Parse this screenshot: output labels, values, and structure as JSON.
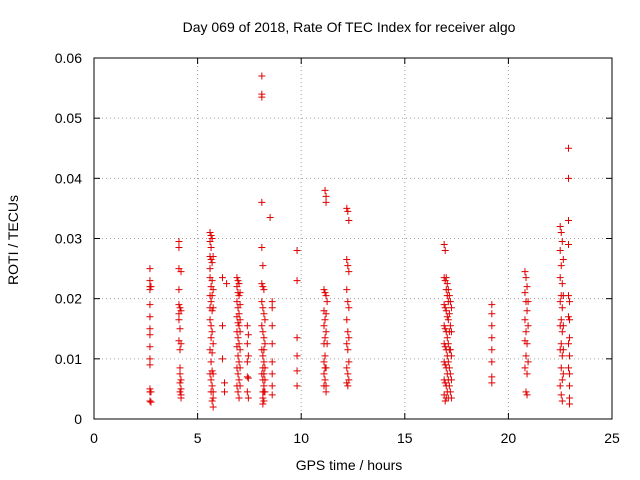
{
  "chart_data": {
    "type": "scatter",
    "title": "Day 069 of 2018, Rate Of TEC Index for receiver algo",
    "xlabel": "GPS time / hours",
    "ylabel": "ROTI / TECUs",
    "xlim": [
      0,
      25
    ],
    "ylim": [
      0,
      0.06
    ],
    "xticks": [
      0,
      5,
      10,
      15,
      20,
      25
    ],
    "xtick_labels": [
      "0",
      "5",
      "10",
      "15",
      "20",
      "25"
    ],
    "yticks": [
      0,
      0.01,
      0.02,
      0.03,
      0.04,
      0.05,
      0.06
    ],
    "ytick_labels": [
      "0",
      "0.01",
      "0.02",
      "0.03",
      "0.04",
      "0.05",
      "0.06"
    ],
    "grid": true,
    "marker": "+",
    "color": "#e00000",
    "series": [
      {
        "x": [
          2.7,
          2.7,
          2.7,
          2.7,
          2.7,
          2.7,
          2.7,
          2.7,
          2.7,
          2.7,
          2.7,
          2.7,
          2.7,
          2.7,
          2.75,
          2.75,
          2.75,
          4.1,
          4.1,
          4.1,
          4.1,
          4.1,
          4.1,
          4.1,
          4.1,
          4.15,
          4.15,
          4.15,
          4.15,
          4.15,
          4.15,
          4.15,
          4.2,
          4.2,
          4.2,
          4.2,
          4.2,
          4.2,
          4.2,
          5.6,
          5.6,
          5.6,
          5.6,
          5.6,
          5.6,
          5.6,
          5.6,
          5.6,
          5.6,
          5.65,
          5.65,
          5.65,
          5.65,
          5.65,
          5.65,
          5.65,
          5.65,
          5.65,
          5.65,
          5.7,
          5.7,
          5.7,
          5.7,
          5.7,
          5.7,
          5.7,
          5.7,
          5.7,
          5.7,
          5.75,
          5.75,
          5.75,
          5.75,
          5.75,
          5.75,
          5.75,
          5.75,
          6.2,
          6.2,
          6.2,
          6.3,
          6.3,
          6.4,
          6.9,
          6.9,
          6.9,
          6.9,
          6.9,
          6.9,
          6.9,
          6.9,
          6.95,
          6.95,
          6.95,
          6.95,
          6.95,
          6.95,
          6.95,
          6.95,
          7.0,
          7.0,
          7.0,
          7.0,
          7.0,
          7.0,
          7.0,
          7.0,
          7.05,
          7.05,
          7.05,
          7.05,
          7.05,
          7.05,
          7.05,
          7.4,
          7.4,
          7.4,
          7.4,
          7.4,
          7.45,
          7.45,
          7.45,
          7.45,
          8.1,
          8.1,
          8.1,
          8.1,
          8.1,
          8.1,
          8.1,
          8.1,
          8.1,
          8.1,
          8.15,
          8.15,
          8.15,
          8.15,
          8.15,
          8.15,
          8.15,
          8.15,
          8.15,
          8.15,
          8.2,
          8.2,
          8.2,
          8.2,
          8.2,
          8.2,
          8.2,
          8.2,
          8.2,
          8.25,
          8.25,
          8.25,
          8.25,
          8.25,
          8.5,
          8.6,
          8.6,
          8.6,
          8.6,
          8.6,
          8.6,
          8.6,
          8.6,
          9.8,
          9.8,
          9.8,
          9.8,
          9.8,
          9.8,
          11.1,
          11.1,
          11.1,
          11.1,
          11.1,
          11.1,
          11.1,
          11.15,
          11.15,
          11.15,
          11.15,
          11.15,
          11.15,
          11.15,
          11.2,
          11.2,
          11.2,
          11.2,
          11.2,
          11.2,
          11.2,
          11.2,
          11.25,
          11.25,
          12.2,
          12.2,
          12.2,
          12.2,
          12.2,
          12.2,
          12.2,
          12.25,
          12.25,
          12.25,
          12.25,
          12.25,
          12.25,
          12.25,
          12.3,
          12.3,
          12.3,
          12.3,
          12.3,
          12.3,
          16.9,
          16.9,
          16.9,
          16.9,
          16.9,
          16.9,
          16.9,
          16.9,
          16.95,
          16.95,
          16.95,
          16.95,
          16.95,
          16.95,
          16.95,
          16.95,
          17.0,
          17.0,
          17.0,
          17.0,
          17.0,
          17.0,
          17.0,
          17.0,
          17.05,
          17.05,
          17.05,
          17.05,
          17.05,
          17.05,
          17.05,
          17.1,
          17.1,
          17.1,
          17.1,
          17.1,
          17.1,
          17.1,
          17.15,
          17.15,
          17.15,
          17.15,
          17.15,
          17.15,
          17.2,
          17.2,
          17.2,
          17.2,
          17.2,
          17.25,
          17.25,
          17.25,
          17.25,
          17.25,
          19.2,
          19.2,
          19.2,
          19.2,
          19.2,
          19.2,
          19.2,
          19.2,
          20.8,
          20.8,
          20.8,
          20.8,
          20.8,
          20.85,
          20.85,
          20.85,
          20.85,
          20.85,
          20.9,
          20.9,
          20.9,
          20.9,
          20.9,
          20.95,
          20.95,
          20.95,
          22.5,
          22.5,
          22.5,
          22.5,
          22.5,
          22.5,
          22.5,
          22.55,
          22.55,
          22.55,
          22.55,
          22.55,
          22.55,
          22.55,
          22.6,
          22.6,
          22.6,
          22.6,
          22.6,
          22.6,
          22.6,
          22.65,
          22.65,
          22.65,
          22.65,
          22.65,
          22.9,
          22.9,
          22.9,
          22.9,
          22.9,
          22.9,
          22.9,
          22.9,
          22.95,
          22.95,
          22.95,
          22.95,
          22.95,
          22.95,
          22.95,
          22.95
        ],
        "y": [
          0.025,
          0.023,
          0.022,
          0.0215,
          0.019,
          0.017,
          0.015,
          0.014,
          0.012,
          0.01,
          0.009,
          0.005,
          0.0045,
          0.003,
          0.022,
          0.0045,
          0.0028,
          0.0295,
          0.0285,
          0.025,
          0.0215,
          0.019,
          0.0175,
          0.0165,
          0.013,
          0.0185,
          0.015,
          0.0115,
          0.0085,
          0.0075,
          0.006,
          0.0045,
          0.0245,
          0.018,
          0.0125,
          0.0065,
          0.005,
          0.004,
          0.0035,
          0.031,
          0.0295,
          0.027,
          0.025,
          0.0235,
          0.0205,
          0.0185,
          0.0165,
          0.0115,
          0.0075,
          0.0305,
          0.0285,
          0.0265,
          0.022,
          0.0195,
          0.0155,
          0.0135,
          0.0095,
          0.0065,
          0.0045,
          0.03,
          0.026,
          0.023,
          0.0205,
          0.018,
          0.0145,
          0.011,
          0.008,
          0.0055,
          0.003,
          0.027,
          0.0215,
          0.0185,
          0.0125,
          0.0075,
          0.0045,
          0.0035,
          0.002,
          0.0235,
          0.0155,
          0.01,
          0.006,
          0.0045,
          0.0225,
          0.0235,
          0.022,
          0.0195,
          0.017,
          0.0145,
          0.012,
          0.0085,
          0.0055,
          0.023,
          0.021,
          0.0185,
          0.016,
          0.0135,
          0.0105,
          0.0075,
          0.0045,
          0.0225,
          0.0205,
          0.0175,
          0.0155,
          0.0125,
          0.0095,
          0.0065,
          0.0035,
          0.021,
          0.019,
          0.0165,
          0.0145,
          0.0115,
          0.0085,
          0.0055,
          0.0155,
          0.0125,
          0.0095,
          0.007,
          0.0045,
          0.014,
          0.0105,
          0.0068,
          0.0035,
          0.057,
          0.054,
          0.0535,
          0.036,
          0.0285,
          0.0225,
          0.0195,
          0.0155,
          0.0115,
          0.0075,
          0.0255,
          0.022,
          0.0185,
          0.0145,
          0.0105,
          0.0085,
          0.0065,
          0.0045,
          0.0035,
          0.0025,
          0.0215,
          0.0175,
          0.0135,
          0.0115,
          0.0095,
          0.0075,
          0.0055,
          0.0045,
          0.003,
          0.0165,
          0.0125,
          0.0085,
          0.0065,
          0.0045,
          0.0335,
          0.0195,
          0.0185,
          0.0155,
          0.0125,
          0.0095,
          0.0075,
          0.0055,
          0.004,
          0.028,
          0.023,
          0.0135,
          0.0105,
          0.008,
          0.0055,
          0.0215,
          0.018,
          0.0155,
          0.0125,
          0.0095,
          0.0075,
          0.0055,
          0.038,
          0.021,
          0.0165,
          0.0135,
          0.0105,
          0.0085,
          0.0065,
          0.037,
          0.036,
          0.0205,
          0.0175,
          0.0145,
          0.0085,
          0.0055,
          0.0045,
          0.0195,
          0.0125,
          0.035,
          0.0265,
          0.0215,
          0.0165,
          0.0125,
          0.0085,
          0.006,
          0.0345,
          0.0255,
          0.0195,
          0.0145,
          0.0115,
          0.0075,
          0.0055,
          0.033,
          0.0245,
          0.0185,
          0.0135,
          0.0095,
          0.0065,
          0.029,
          0.0235,
          0.019,
          0.0155,
          0.0125,
          0.0095,
          0.0065,
          0.004,
          0.028,
          0.023,
          0.0185,
          0.015,
          0.012,
          0.009,
          0.006,
          0.003,
          0.0235,
          0.0215,
          0.018,
          0.0145,
          0.0115,
          0.0085,
          0.0055,
          0.0035,
          0.0225,
          0.0205,
          0.017,
          0.0135,
          0.0105,
          0.0075,
          0.0045,
          0.0215,
          0.0195,
          0.0165,
          0.0125,
          0.0095,
          0.0065,
          0.0035,
          0.0205,
          0.0175,
          0.0145,
          0.0115,
          0.0085,
          0.0055,
          0.0195,
          0.0155,
          0.0115,
          0.0075,
          0.0045,
          0.0185,
          0.0145,
          0.0105,
          0.0065,
          0.0035,
          0.019,
          0.0175,
          0.0155,
          0.0135,
          0.0115,
          0.0095,
          0.007,
          0.006,
          0.0245,
          0.021,
          0.0165,
          0.013,
          0.0085,
          0.0235,
          0.0195,
          0.0145,
          0.0105,
          0.0045,
          0.022,
          0.018,
          0.0125,
          0.0075,
          0.004,
          0.0195,
          0.0155,
          0.0095,
          0.032,
          0.028,
          0.0235,
          0.0195,
          0.0155,
          0.0115,
          0.0055,
          0.031,
          0.0255,
          0.0205,
          0.0165,
          0.0125,
          0.0085,
          0.004,
          0.0295,
          0.0225,
          0.0185,
          0.0145,
          0.0105,
          0.0065,
          0.003,
          0.0265,
          0.0205,
          0.0155,
          0.0115,
          0.0075,
          0.045,
          0.04,
          0.033,
          0.029,
          0.0205,
          0.017,
          0.0125,
          0.0085,
          0.0195,
          0.0165,
          0.0135,
          0.0105,
          0.0075,
          0.0055,
          0.0035,
          0.0025
        ]
      }
    ]
  }
}
